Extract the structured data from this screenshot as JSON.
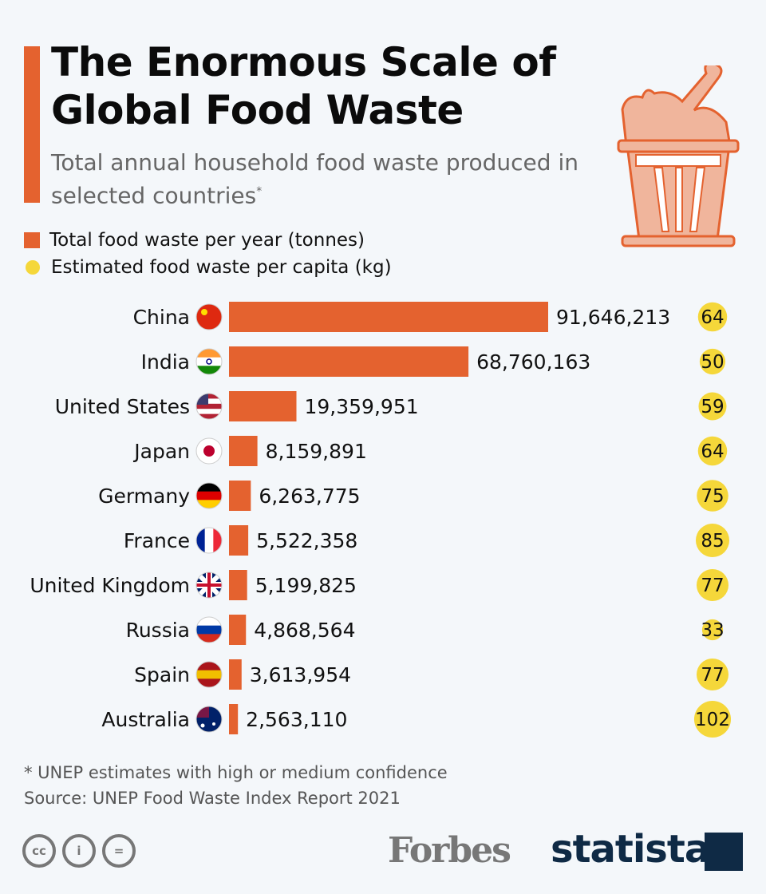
{
  "header": {
    "title_line1": "The Enormous Scale of",
    "title_line2": "Global Food Waste",
    "subtitle": "Total annual household food waste produced in selected countries",
    "subtitle_mark": "*"
  },
  "legend": {
    "bars": "Total food waste per year (tonnes)",
    "circles": "Estimated food waste per capita (kg)"
  },
  "colors": {
    "bar": "#e4622f",
    "circle": "#f5d73a",
    "background": "#f4f7fa"
  },
  "chart_data": {
    "type": "bar",
    "orientation": "horizontal",
    "categories": [
      "China",
      "India",
      "United States",
      "Japan",
      "Germany",
      "France",
      "United Kingdom",
      "Russia",
      "Spain",
      "Australia"
    ],
    "series": [
      {
        "name": "Total food waste per year (tonnes)",
        "values": [
          91646213,
          68760163,
          19359951,
          8159891,
          6263775,
          5522358,
          5199825,
          4868564,
          3613954,
          2563110
        ],
        "labels": [
          "91,646,213",
          "68,760,163",
          "19,359,951",
          "8,159,891",
          "6,263,775",
          "5,522,358",
          "5,199,825",
          "4,868,564",
          "3,613,954",
          "2,563,110"
        ]
      },
      {
        "name": "Estimated food waste per capita (kg)",
        "values": [
          64,
          50,
          59,
          64,
          75,
          85,
          77,
          33,
          77,
          102
        ]
      }
    ],
    "flags": [
      "china-flag",
      "india-flag",
      "usa-flag",
      "japan-flag",
      "germany-flag",
      "france-flag",
      "uk-flag",
      "russia-flag",
      "spain-flag",
      "australia-flag"
    ]
  },
  "footer": {
    "note": "* UNEP estimates with high or medium confidence",
    "source": "Source: UNEP Food Waste Index Report 2021",
    "cc": "cc",
    "forbes": "Forbes",
    "statista": "statista"
  }
}
